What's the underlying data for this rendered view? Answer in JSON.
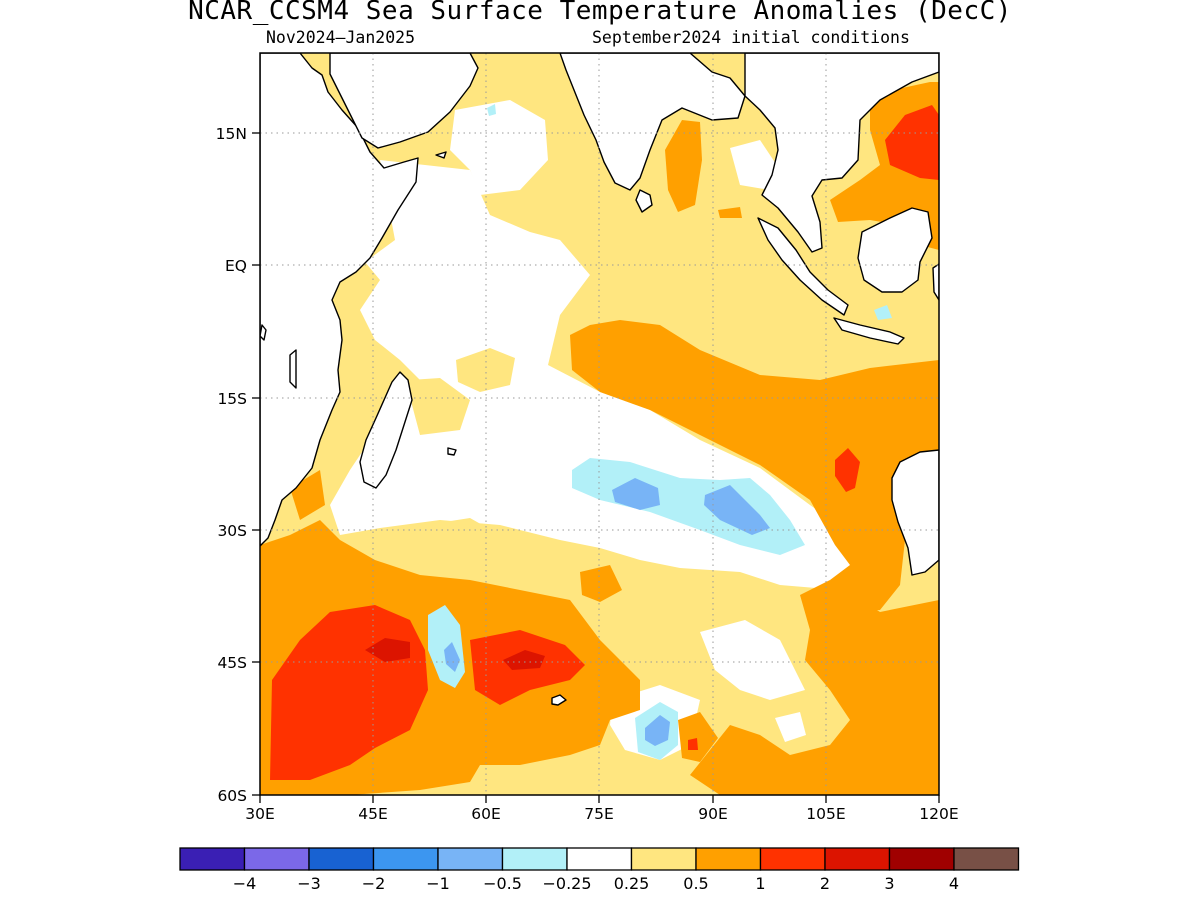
{
  "title": "NCAR_CCSM4 Sea Surface Temperature Anomalies (DecC)",
  "subtitle_left": "Nov2024–Jan2025",
  "subtitle_right": "September2024 initial conditions",
  "map": {
    "region": "Indian Ocean",
    "lon_range": [
      30,
      120
    ],
    "lat_range": [
      -60,
      24
    ],
    "lon_ticks": [
      {
        "value": 30,
        "label": "30E"
      },
      {
        "value": 45,
        "label": "45E"
      },
      {
        "value": 60,
        "label": "60E"
      },
      {
        "value": 75,
        "label": "75E"
      },
      {
        "value": 90,
        "label": "90E"
      },
      {
        "value": 105,
        "label": "105E"
      },
      {
        "value": 120,
        "label": "120E"
      }
    ],
    "lat_ticks": [
      {
        "value": 15,
        "label": "15N"
      },
      {
        "value": 0,
        "label": "EQ"
      },
      {
        "value": -15,
        "label": "15S"
      },
      {
        "value": -30,
        "label": "30S"
      },
      {
        "value": -45,
        "label": "45S"
      },
      {
        "value": -60,
        "label": "60S"
      }
    ],
    "grid": "dotted"
  },
  "legend": {
    "colors": [
      "#3a1fb4",
      "#7b68e8",
      "#1862d2",
      "#3c96f0",
      "#78b4f6",
      "#b2f0f8",
      "#ffffff",
      "#ffe680",
      "#ffa000",
      "#ff3200",
      "#dc1400",
      "#a00000",
      "#785046"
    ],
    "labels": [
      "−4",
      "−3",
      "−2",
      "−1",
      "−0.5",
      "−0.25",
      "0.25",
      "0.5",
      "1",
      "2",
      "3",
      "4"
    ]
  },
  "colors": {
    "neutral": "#ffffff",
    "weak_warm": "#ffe680",
    "warm": "#ffa000",
    "hot": "#ff3200",
    "very_hot": "#dc1400",
    "weak_cool": "#b2f0f8",
    "cool": "#78b4f6"
  }
}
